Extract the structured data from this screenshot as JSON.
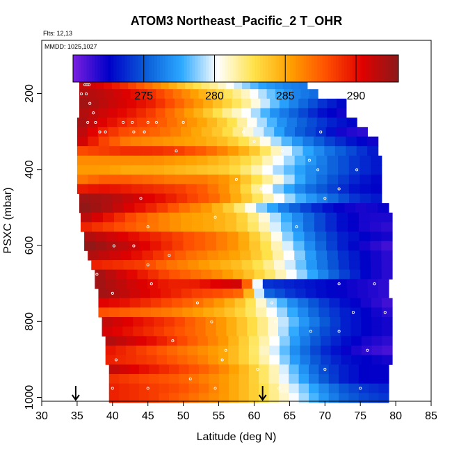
{
  "chart_data": {
    "type": "heatmap",
    "title": "ATOM3 Northeast_Pacific_2 T_OHR",
    "annotations": {
      "flights": "Flts: 12,13",
      "dates": "MMDD: 1025,1027"
    },
    "xlabel": "Latitude (deg N)",
    "ylabel": "PSXC (mbar)",
    "xlim": [
      30,
      85
    ],
    "ylim": [
      1010,
      60
    ],
    "y_reversed": true,
    "x_ticks": [
      "30",
      "35",
      "40",
      "45",
      "50",
      "55",
      "60",
      "65",
      "70",
      "75",
      "80",
      "85"
    ],
    "y_ticks": [
      "200",
      "400",
      "600",
      "800",
      "1000"
    ],
    "colorbar": {
      "range": [
        270,
        293
      ],
      "ticks": [
        "275",
        "280",
        "285",
        "290"
      ],
      "colors": [
        "#7a1fe0",
        "#0000c8",
        "#0a5bd8",
        "#2ba8ff",
        "#ffffff",
        "#ffe24a",
        "#ffa000",
        "#ff5000",
        "#e00000",
        "#8b1a1a"
      ]
    },
    "bands": [
      {
        "p": 177,
        "x": [
          35.3,
          67.5
        ],
        "t": [
          291.5,
          290.5,
          289.0,
          287.0,
          285.0,
          283.0,
          281.5,
          279.5,
          277.5,
          276.5,
          276.0
        ]
      },
      {
        "p": 201,
        "x": [
          35.3,
          69.0
        ],
        "t": [
          292.0,
          291.5,
          290.5,
          289.0,
          287.0,
          285.0,
          283.0,
          281.0,
          278.5,
          276.5,
          275.5
        ]
      },
      {
        "p": 226,
        "x": [
          35.3,
          73.0
        ],
        "t": [
          292.5,
          291.5,
          290.5,
          289.5,
          287.5,
          285.5,
          283.5,
          281.5,
          278.5,
          276.0,
          274.0,
          272.5
        ]
      },
      {
        "p": 251,
        "x": [
          35.3,
          73.0
        ],
        "t": [
          292.0,
          291.0,
          290.0,
          288.5,
          286.5,
          284.5,
          282.0,
          280.0,
          277.0,
          275.0,
          273.0,
          272.0
        ]
      },
      {
        "p": 276,
        "x": [
          35.0,
          74.5
        ],
        "t": [
          292.5,
          290.5,
          289.0,
          288.0,
          286.5,
          285.0,
          283.0,
          280.0,
          277.0,
          275.0,
          273.5,
          272.5
        ]
      },
      {
        "p": 301,
        "x": [
          35.0,
          76.0
        ],
        "t": [
          292.0,
          289.5,
          288.0,
          287.5,
          286.5,
          285.0,
          283.5,
          281.0,
          278.5,
          275.5,
          274.0,
          272.0,
          271.5
        ]
      },
      {
        "p": 326,
        "x": [
          35.0,
          77.5
        ],
        "t": [
          291.5,
          288.5,
          286.5,
          286.0,
          285.5,
          285.0,
          284.0,
          282.0,
          279.0,
          276.5,
          274.5,
          273.0,
          272.0
        ]
      },
      {
        "p": 351,
        "x": [
          35.0,
          77.5
        ],
        "t": [
          288.0,
          288.5,
          289.0,
          289.0,
          288.5,
          287.5,
          286.0,
          284.0,
          281.0,
          278.0,
          276.0,
          274.5,
          273.0
        ]
      },
      {
        "p": 376,
        "x": [
          35.0,
          78.0
        ],
        "t": [
          286.0,
          286.0,
          286.0,
          286.0,
          285.5,
          285.0,
          284.0,
          282.5,
          280.0,
          277.5,
          275.5,
          274.0,
          273.0
        ]
      },
      {
        "p": 401,
        "x": [
          35.0,
          78.0
        ],
        "t": [
          285.5,
          285.5,
          285.0,
          285.0,
          284.5,
          284.0,
          283.5,
          281.5,
          279.0,
          277.0,
          275.5,
          274.0,
          273.0
        ]
      },
      {
        "p": 426,
        "x": [
          35.0,
          78.0
        ],
        "t": [
          286.5,
          287.5,
          287.5,
          287.0,
          286.5,
          286.5,
          285.5,
          283.0,
          280.5,
          277.0,
          275.0,
          273.5,
          272.5
        ]
      },
      {
        "p": 451,
        "x": [
          35.0,
          78.0
        ],
        "t": [
          289.5,
          290.0,
          289.5,
          289.0,
          288.5,
          287.5,
          285.5,
          282.0,
          278.5,
          276.0,
          274.5,
          273.0,
          272.5
        ]
      },
      {
        "p": 476,
        "x": [
          35.3,
          78.0
        ],
        "t": [
          292.5,
          292.0,
          291.0,
          290.0,
          288.5,
          287.0,
          284.0,
          281.0,
          278.0,
          276.0,
          274.0,
          273.0
        ]
      },
      {
        "p": 501,
        "x": [
          35.3,
          79.0
        ],
        "t": [
          293.0,
          292.0,
          290.5,
          289.0,
          287.0,
          285.5,
          283.0,
          279.0,
          276.0,
          274.0,
          272.5,
          272.0,
          272.5
        ]
      },
      {
        "p": 526,
        "x": [
          35.5,
          79.5
        ],
        "t": [
          292.0,
          290.0,
          288.0,
          286.5,
          285.5,
          285.0,
          284.0,
          281.0,
          277.5,
          275.0,
          273.0,
          272.0,
          272.0
        ]
      },
      {
        "p": 551,
        "x": [
          35.5,
          79.5
        ],
        "t": [
          289.5,
          288.5,
          287.5,
          286.5,
          285.5,
          285.0,
          284.0,
          281.5,
          278.0,
          275.0,
          273.0,
          272.0,
          271.5
        ]
      },
      {
        "p": 576,
        "x": [
          36.0,
          79.5
        ],
        "t": [
          292.0,
          291.0,
          290.0,
          289.0,
          288.0,
          287.0,
          285.5,
          282.5,
          278.5,
          275.5,
          273.5,
          272.5,
          272.0
        ]
      },
      {
        "p": 601,
        "x": [
          36.0,
          79.5
        ],
        "t": [
          293.0,
          292.0,
          291.0,
          289.5,
          288.0,
          287.0,
          285.5,
          283.0,
          279.5,
          276.0,
          273.5,
          272.0,
          271.0
        ]
      },
      {
        "p": 626,
        "x": [
          36.5,
          79.5
        ],
        "t": [
          292.0,
          291.0,
          290.0,
          288.5,
          287.0,
          286.0,
          285.0,
          283.0,
          280.0,
          276.5,
          274.0,
          272.5,
          271.5
        ]
      },
      {
        "p": 651,
        "x": [
          37.0,
          79.5
        ],
        "t": [
          289.5,
          289.0,
          288.5,
          287.0,
          286.0,
          285.0,
          284.0,
          282.0,
          279.5,
          276.5,
          274.0,
          272.5,
          271.5
        ]
      },
      {
        "p": 676,
        "x": [
          37.5,
          79.5
        ],
        "t": [
          292.5,
          291.0,
          289.5,
          288.0,
          287.0,
          286.0,
          284.5,
          282.5,
          280.0,
          277.0,
          274.5,
          272.5,
          271.5
        ]
      },
      {
        "p": 701,
        "x": [
          37.5,
          79.0
        ],
        "t": [
          292.5,
          291.5,
          290.5,
          289.5,
          289.5,
          290.5,
          291.0,
          274.0,
          273.5,
          273.0,
          272.5,
          272.0,
          271.5
        ]
      },
      {
        "p": 726,
        "x": [
          38.0,
          79.0
        ],
        "t": [
          292.5,
          291.5,
          290.5,
          289.5,
          288.5,
          288.0,
          287.0,
          275.5,
          274.0,
          273.0,
          272.5,
          272.0,
          271.5
        ]
      },
      {
        "p": 751,
        "x": [
          38.0,
          79.5
        ],
        "t": [
          290.5,
          290.0,
          289.0,
          288.0,
          287.0,
          285.5,
          283.5,
          279.5,
          276.5,
          274.5,
          273.0,
          272.0,
          271.0
        ]
      },
      {
        "p": 776,
        "x": [
          38.0,
          79.5
        ],
        "t": [
          288.0,
          287.5,
          287.0,
          286.5,
          285.5,
          284.5,
          283.0,
          280.5,
          277.5,
          275.0,
          273.5,
          272.5,
          271.5
        ]
      },
      {
        "p": 801,
        "x": [
          38.5,
          79.5
        ],
        "t": [
          291.5,
          290.5,
          289.5,
          288.5,
          287.0,
          285.5,
          283.5,
          281.0,
          278.0,
          275.5,
          273.5,
          272.5,
          272.0
        ]
      },
      {
        "p": 826,
        "x": [
          38.5,
          79.5
        ],
        "t": [
          291.0,
          290.0,
          289.0,
          288.0,
          287.0,
          285.5,
          283.5,
          281.0,
          277.5,
          275.0,
          273.5,
          272.5,
          272.0
        ]
      },
      {
        "p": 851,
        "x": [
          39.0,
          79.5
        ],
        "t": [
          292.0,
          291.0,
          290.0,
          288.5,
          287.0,
          285.5,
          283.0,
          280.5,
          277.0,
          274.5,
          273.0,
          272.0,
          271.5
        ]
      },
      {
        "p": 876,
        "x": [
          39.0,
          79.5
        ],
        "t": [
          290.0,
          289.0,
          288.0,
          287.0,
          286.0,
          285.0,
          283.0,
          280.0,
          276.5,
          274.0,
          272.5,
          271.5,
          271.0
        ]
      },
      {
        "p": 901,
        "x": [
          39.0,
          79.5
        ],
        "t": [
          289.5,
          289.0,
          288.5,
          287.5,
          286.5,
          285.0,
          283.0,
          280.5,
          277.0,
          274.5,
          273.0,
          272.5,
          272.0
        ]
      },
      {
        "p": 926,
        "x": [
          39.5,
          79.0
        ],
        "t": [
          291.5,
          290.5,
          289.5,
          288.5,
          287.5,
          286.0,
          284.0,
          281.5,
          278.0,
          275.0,
          273.5,
          272.5,
          272.5
        ]
      },
      {
        "p": 951,
        "x": [
          39.5,
          79.0
        ],
        "t": [
          289.0,
          288.5,
          288.0,
          287.5,
          286.5,
          285.5,
          284.0,
          281.5,
          278.5,
          275.5,
          273.5,
          272.5,
          272.5
        ]
      },
      {
        "p": 976,
        "x": [
          39.5,
          79.0
        ],
        "t": [
          289.5,
          289.0,
          288.5,
          288.0,
          287.0,
          285.5,
          284.0,
          282.0,
          279.5,
          277.0,
          275.0,
          274.0,
          273.5
        ]
      },
      {
        "p": 1001,
        "x": [
          39.5,
          79.0
        ],
        "t": [
          289.5,
          289.0,
          288.5,
          287.5,
          286.5,
          285.5,
          284.0,
          282.0,
          280.0,
          277.5,
          275.5,
          274.5,
          274.0
        ]
      }
    ],
    "observations": [
      [
        36.1,
        177
      ],
      [
        36.4,
        177
      ],
      [
        36.7,
        177
      ],
      [
        35.6,
        201
      ],
      [
        36.3,
        201
      ],
      [
        36.8,
        226
      ],
      [
        37.3,
        251
      ],
      [
        36.5,
        276
      ],
      [
        37.6,
        276
      ],
      [
        41.5,
        276
      ],
      [
        42.8,
        276
      ],
      [
        45.0,
        276
      ],
      [
        46.2,
        276
      ],
      [
        50.0,
        276
      ],
      [
        38.2,
        301
      ],
      [
        39.0,
        301
      ],
      [
        43.0,
        301
      ],
      [
        44.5,
        301
      ],
      [
        58.5,
        301
      ],
      [
        69.4,
        301
      ],
      [
        60.0,
        326
      ],
      [
        64.0,
        351
      ],
      [
        49.0,
        351
      ],
      [
        67.8,
        376
      ],
      [
        69.0,
        401
      ],
      [
        74.5,
        401
      ],
      [
        57.5,
        426
      ],
      [
        61.0,
        451
      ],
      [
        72.0,
        451
      ],
      [
        44.0,
        476
      ],
      [
        70.0,
        476
      ],
      [
        54.5,
        526
      ],
      [
        45.0,
        551
      ],
      [
        66.0,
        551
      ],
      [
        40.2,
        601
      ],
      [
        43.0,
        601
      ],
      [
        48.0,
        626
      ],
      [
        45.0,
        651
      ],
      [
        37.8,
        676
      ],
      [
        45.5,
        701
      ],
      [
        61.0,
        701
      ],
      [
        72.0,
        701
      ],
      [
        77.0,
        701
      ],
      [
        40.0,
        726
      ],
      [
        52.0,
        751
      ],
      [
        62.5,
        751
      ],
      [
        74.0,
        776
      ],
      [
        78.5,
        776
      ],
      [
        54.0,
        801
      ],
      [
        63.0,
        801
      ],
      [
        68.0,
        826
      ],
      [
        72.0,
        826
      ],
      [
        48.5,
        851
      ],
      [
        56.0,
        876
      ],
      [
        76.0,
        876
      ],
      [
        40.5,
        901
      ],
      [
        55.5,
        901
      ],
      [
        60.5,
        926
      ],
      [
        70.0,
        926
      ],
      [
        51.0,
        951
      ],
      [
        40.0,
        976
      ],
      [
        45.0,
        976
      ],
      [
        54.5,
        976
      ],
      [
        63.5,
        976
      ],
      [
        75.0,
        976
      ]
    ],
    "markers": [
      34.8,
      61.2
    ]
  }
}
